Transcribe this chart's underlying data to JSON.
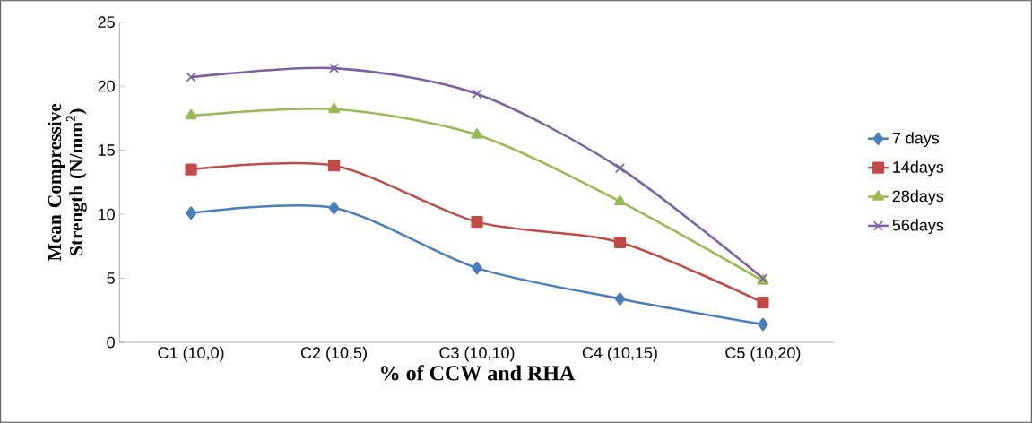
{
  "chart_data": {
    "type": "line",
    "xlabel": "% of CCW and RHA",
    "ylabel": "Mean Compressive Strength (N/mm$^{2}$)",
    "categories": [
      "C1 (10,0)",
      "C2 (10,5)",
      "C3 (10,10)",
      "C4 (10,15)",
      "C5 (10,20)"
    ],
    "ylim": [
      0,
      25
    ],
    "yticks": [
      0,
      5,
      10,
      15,
      20,
      25
    ],
    "grid": false,
    "legend": "right",
    "series": [
      {
        "name": "7 days",
        "color": "#4a7ebb",
        "marker": "diamond",
        "values": [
          10.1,
          10.5,
          5.8,
          3.4,
          1.4
        ]
      },
      {
        "name": "14days",
        "color": "#be4b48",
        "marker": "square",
        "values": [
          13.5,
          13.8,
          9.4,
          7.8,
          3.1
        ]
      },
      {
        "name": "28days",
        "color": "#98b954",
        "marker": "triangle",
        "values": [
          17.7,
          18.2,
          16.2,
          11.0,
          4.8
        ]
      },
      {
        "name": "56days",
        "color": "#7d60a0",
        "marker": "cross",
        "values": [
          20.7,
          21.4,
          19.4,
          13.6,
          5.0
        ]
      }
    ]
  }
}
